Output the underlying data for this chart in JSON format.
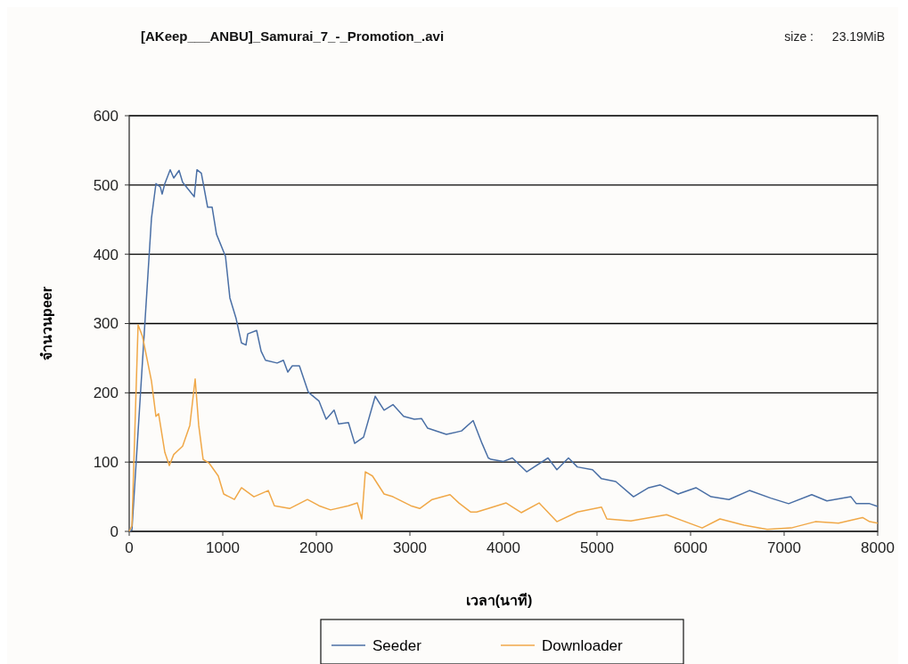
{
  "chart_data": {
    "type": "line",
    "title": "[AKeep___ANBU]_Samurai_7_-_Promotion_.avi",
    "annotations": [
      "size :",
      "23.19MiB"
    ],
    "xlabel": "เวลา(นาที)",
    "ylabel": "จำนวนpeer",
    "xlim": [
      0,
      8000
    ],
    "xticks": [
      0,
      1000,
      2000,
      3000,
      4000,
      5000,
      6000,
      7000,
      8000
    ],
    "ylim": [
      0,
      600
    ],
    "yticks": [
      0,
      100,
      200,
      300,
      400,
      500,
      600
    ],
    "grid": "y",
    "legend": "bottom",
    "marker": "none",
    "line_style": "solid",
    "series": [
      {
        "name": "Seeder",
        "color": "#4a6fa5",
        "x": [
          0,
          29,
          238,
          286,
          333,
          352,
          381,
          438,
          476,
          533,
          571,
          695,
          724,
          771,
          838,
          886,
          933,
          1029,
          1076,
          1143,
          1200,
          1248,
          1267,
          1362,
          1410,
          1457,
          1581,
          1648,
          1695,
          1743,
          1819,
          1914,
          2029,
          2105,
          2190,
          2238,
          2343,
          2410,
          2505,
          2629,
          2724,
          2819,
          2933,
          3048,
          3124,
          3190,
          3390,
          3552,
          3676,
          3771,
          3838,
          3867,
          4000,
          4095,
          4248,
          4476,
          4571,
          4695,
          4790,
          4952,
          5048,
          5200,
          5390,
          5552,
          5676,
          5867,
          6057,
          6219,
          6410,
          6629,
          6857,
          7048,
          7295,
          7457,
          7714,
          7771,
          7914,
          8000
        ],
        "values": [
          0,
          2,
          452,
          502,
          497,
          487,
          502,
          522,
          510,
          521,
          504,
          483,
          522,
          517,
          468,
          468,
          429,
          397,
          337,
          307,
          272,
          269,
          285,
          290,
          260,
          247,
          243,
          247,
          230,
          239,
          239,
          201,
          188,
          162,
          175,
          155,
          157,
          127,
          136,
          195,
          175,
          183,
          166,
          162,
          163,
          149,
          140,
          145,
          160,
          127,
          106,
          104,
          101,
          106,
          86,
          106,
          89,
          106,
          93,
          89,
          76,
          72,
          50,
          63,
          67,
          54,
          63,
          50,
          46,
          59,
          48,
          40,
          53,
          44,
          50,
          40,
          40,
          36
        ]
      },
      {
        "name": "Downloader",
        "color": "#f0a848",
        "x": [
          0,
          29,
          95,
          143,
          238,
          286,
          314,
          381,
          429,
          476,
          571,
          648,
          705,
          743,
          790,
          857,
          952,
          1010,
          1124,
          1200,
          1333,
          1486,
          1552,
          1714,
          1905,
          2029,
          2152,
          2343,
          2438,
          2486,
          2524,
          2600,
          2724,
          2819,
          3010,
          3105,
          3238,
          3429,
          3524,
          3648,
          3714,
          3838,
          4029,
          4190,
          4381,
          4571,
          4790,
          5048,
          5105,
          5362,
          5743,
          6124,
          6314,
          6571,
          6819,
          7076,
          7333,
          7581,
          7838,
          7914,
          8000
        ],
        "values": [
          0,
          8,
          298,
          281,
          217,
          166,
          170,
          114,
          95,
          111,
          123,
          153,
          220,
          153,
          104,
          98,
          80,
          54,
          46,
          63,
          50,
          59,
          37,
          33,
          46,
          37,
          31,
          37,
          41,
          18,
          86,
          80,
          54,
          50,
          37,
          33,
          46,
          53,
          41,
          28,
          28,
          33,
          41,
          27,
          41,
          14,
          28,
          35,
          18,
          15,
          24,
          5,
          18,
          9,
          3,
          5,
          14,
          12,
          20,
          14,
          12
        ]
      }
    ]
  }
}
